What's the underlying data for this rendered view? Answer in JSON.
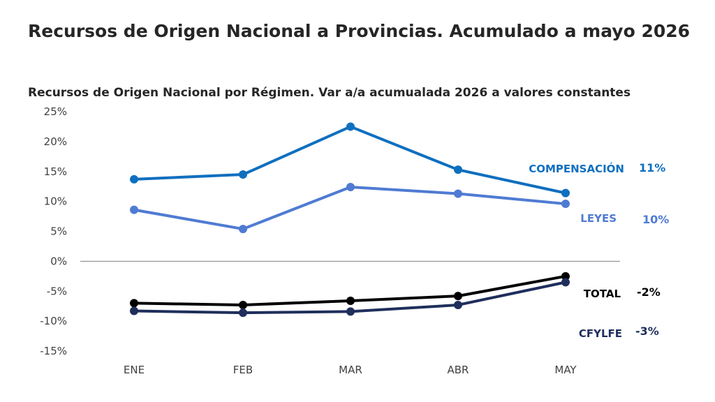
{
  "page": {
    "title": "Recursos de Origen Nacional a Provincias. Acumulado a mayo 2026"
  },
  "chart_data": {
    "type": "line",
    "title": "Recursos de Origen Nacional por Régimen. Var a/a acumualada 2026 a valores constantes",
    "xlabel": "",
    "ylabel": "",
    "categories": [
      "ENE",
      "FEB",
      "MAR",
      "ABR",
      "MAY"
    ],
    "ylim": [
      -15,
      25
    ],
    "yticks": [
      25,
      20,
      15,
      10,
      5,
      0,
      -5,
      -10,
      -15
    ],
    "ytick_labels": [
      "25%",
      "20%",
      "15%",
      "10%",
      "5%",
      "0%",
      "-5%",
      "-10%",
      "-15%"
    ],
    "grid": false,
    "zero_line": true,
    "series": [
      {
        "name": "COMPENSACIÓN",
        "values": [
          13.7,
          14.5,
          22.5,
          15.3,
          11.4
        ],
        "end_label": "11%",
        "color": "#0F6FBF"
      },
      {
        "name": "LEYES",
        "values": [
          8.6,
          5.4,
          12.4,
          11.3,
          9.6
        ],
        "end_label": "10%",
        "color": "#4F7BD3"
      },
      {
        "name": "TOTAL",
        "values": [
          -7.0,
          -7.3,
          -6.6,
          -5.8,
          -2.5
        ],
        "end_label": "-2%",
        "color": "#000000"
      },
      {
        "name": "CFYLFE",
        "values": [
          -8.3,
          -8.6,
          -8.4,
          -7.3,
          -3.5
        ],
        "end_label": "-3%",
        "color": "#1F2F5C"
      }
    ]
  }
}
